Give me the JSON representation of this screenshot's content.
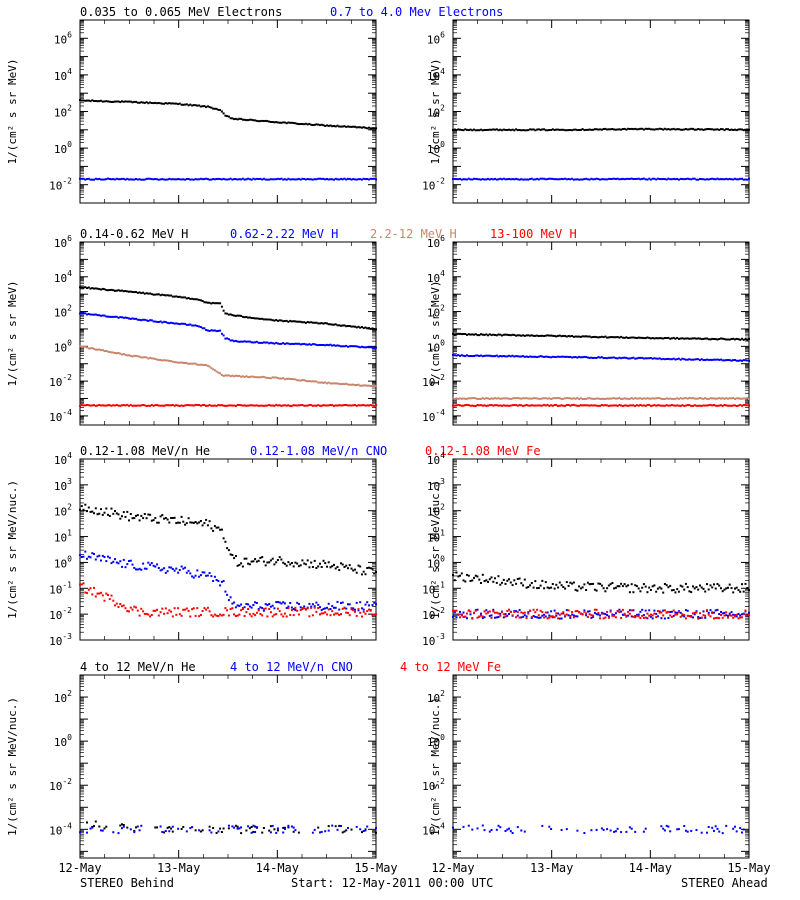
{
  "footer": {
    "left": "STEREO Behind",
    "center": "Start: 12-May-2011 00:00 UTC",
    "right": "STEREO Ahead"
  },
  "colors": {
    "black": "#000000",
    "blue": "#0000ff",
    "tan": "#c8866a",
    "red": "#ff0000"
  },
  "x_ticks": [
    "12-May",
    "13-May",
    "14-May",
    "15-May"
  ],
  "chart_data": [
    {
      "id": "electrons-behind",
      "type": "scatter",
      "scale": "log",
      "ylabel": "1/(cm² s sr MeV)",
      "ylim": [
        0.001,
        10000000
      ],
      "yticks": [
        {
          "v": 0.01,
          "e": "-2"
        },
        {
          "v": 1.0,
          "e": "0"
        },
        {
          "v": 100.0,
          "e": "2"
        },
        {
          "v": 10000.0,
          "e": "4"
        },
        {
          "v": 1000000.0,
          "e": "6"
        }
      ],
      "xlim": [
        0,
        3
      ],
      "series": [
        {
          "name": "0.035 to 0.065 MeV Electrons",
          "color": "black",
          "x": [
            0,
            0.5,
            1.0,
            1.3,
            1.42,
            1.47,
            1.55,
            2.0,
            2.5,
            3.0
          ],
          "y": [
            400,
            330,
            260,
            180,
            120,
            60,
            40,
            26,
            17,
            12
          ]
        },
        {
          "name": "0.7 to 4.0 Mev Electrons",
          "color": "blue",
          "x": [
            0,
            1,
            2,
            3
          ],
          "y": [
            0.02,
            0.02,
            0.02,
            0.02
          ]
        }
      ]
    },
    {
      "id": "electrons-ahead",
      "type": "scatter",
      "scale": "log",
      "ylabel": "1/(cm² s sr MeV)",
      "ylim": [
        0.001,
        10000000
      ],
      "yticks": [
        {
          "v": 0.01,
          "e": "-2"
        },
        {
          "v": 1.0,
          "e": "0"
        },
        {
          "v": 100.0,
          "e": "2"
        },
        {
          "v": 10000.0,
          "e": "4"
        },
        {
          "v": 1000000.0,
          "e": "6"
        }
      ],
      "xlim": [
        0,
        3
      ],
      "series": [
        {
          "name": "",
          "color": "black",
          "x": [
            0,
            1,
            2,
            3
          ],
          "y": [
            10,
            10,
            11,
            10
          ]
        },
        {
          "name": "",
          "color": "blue",
          "x": [
            0,
            1,
            2,
            3
          ],
          "y": [
            0.02,
            0.02,
            0.02,
            0.02
          ]
        }
      ]
    },
    {
      "id": "protons-behind",
      "type": "scatter",
      "scale": "log",
      "ylabel": "1/(cm² s sr MeV)",
      "ylim": [
        3e-05,
        1000000
      ],
      "yticks": [
        {
          "v": 0.0001,
          "e": "-4"
        },
        {
          "v": 0.01,
          "e": "-2"
        },
        {
          "v": 1.0,
          "e": "0"
        },
        {
          "v": 100.0,
          "e": "2"
        },
        {
          "v": 10000.0,
          "e": "4"
        },
        {
          "v": 1000000.0,
          "e": "6"
        }
      ],
      "xlim": [
        0,
        3
      ],
      "series": [
        {
          "name": "0.14-0.62 MeV H",
          "color": "black",
          "x": [
            0,
            0.5,
            1.0,
            1.2,
            1.3,
            1.42,
            1.47,
            1.55,
            2.0,
            2.5,
            3.0
          ],
          "y": [
            2500,
            1400,
            700,
            500,
            300,
            300,
            80,
            60,
            30,
            20,
            10
          ]
        },
        {
          "name": "0.62-2.22 MeV H",
          "color": "blue",
          "x": [
            0,
            0.5,
            1.0,
            1.2,
            1.3,
            1.42,
            1.47,
            1.55,
            2.0,
            2.5,
            3.0
          ],
          "y": [
            80,
            40,
            20,
            15,
            8,
            8,
            3,
            2,
            1.5,
            1.2,
            0.8
          ]
        },
        {
          "name": "2.2-12 MeV H",
          "color": "tan",
          "x": [
            0,
            0.5,
            1.0,
            1.3,
            1.45,
            1.55,
            2.0,
            2.5,
            3.0
          ],
          "y": [
            1.0,
            0.3,
            0.12,
            0.08,
            0.02,
            0.02,
            0.015,
            0.008,
            0.005
          ]
        },
        {
          "name": "13-100 MeV H",
          "color": "red",
          "x": [
            0,
            1,
            2,
            3
          ],
          "y": [
            0.0004,
            0.0004,
            0.0004,
            0.0004
          ]
        }
      ]
    },
    {
      "id": "protons-ahead",
      "type": "scatter",
      "scale": "log",
      "ylabel": "1/(cm² s sr MeV)",
      "ylim": [
        3e-05,
        1000000
      ],
      "yticks": [
        {
          "v": 0.0001,
          "e": "-4"
        },
        {
          "v": 0.01,
          "e": "-2"
        },
        {
          "v": 1.0,
          "e": "0"
        },
        {
          "v": 100.0,
          "e": "2"
        },
        {
          "v": 10000.0,
          "e": "4"
        },
        {
          "v": 1000000.0,
          "e": "6"
        }
      ],
      "xlim": [
        0,
        3
      ],
      "series": [
        {
          "name": "",
          "color": "black",
          "x": [
            0,
            1,
            2,
            3
          ],
          "y": [
            5,
            4,
            3,
            2.5
          ]
        },
        {
          "name": "",
          "color": "blue",
          "x": [
            0,
            1,
            2,
            3
          ],
          "y": [
            0.3,
            0.25,
            0.2,
            0.15
          ]
        },
        {
          "name": "",
          "color": "tan",
          "x": [
            0,
            1,
            2,
            3
          ],
          "y": [
            0.001,
            0.001,
            0.001,
            0.001
          ]
        },
        {
          "name": "",
          "color": "red",
          "x": [
            0,
            1,
            2,
            3
          ],
          "y": [
            0.0004,
            0.0004,
            0.0004,
            0.0004
          ]
        }
      ]
    },
    {
      "id": "heavy-behind",
      "type": "scatter",
      "scale": "log",
      "ylabel": "1/(cm² s sr MeV/nuc.)",
      "ylim": [
        0.001,
        10000
      ],
      "yticks": [
        {
          "v": 0.001,
          "e": "-3"
        },
        {
          "v": 0.01,
          "e": "-2"
        },
        {
          "v": 0.1,
          "e": "-1"
        },
        {
          "v": 1.0,
          "e": "0"
        },
        {
          "v": 10.0,
          "e": "1"
        },
        {
          "v": 100.0,
          "e": "2"
        },
        {
          "v": 1000.0,
          "e": "3"
        },
        {
          "v": 10000.0,
          "e": "4"
        }
      ],
      "xlim": [
        0,
        3
      ],
      "series": [
        {
          "name": "0.12-1.08 MeV/n He",
          "color": "black",
          "x": [
            0,
            0.5,
            1.0,
            1.3,
            1.45,
            1.52,
            1.6,
            2.0,
            2.5,
            3.0
          ],
          "y": [
            150,
            60,
            40,
            30,
            15,
            2,
            1.0,
            1.2,
            0.8,
            0.4
          ]
        },
        {
          "name": "0.12-1.08 MeV/n CNO",
          "color": "blue",
          "x": [
            0,
            0.5,
            1.0,
            1.3,
            1.45,
            1.55,
            2.0,
            2.5,
            3.0
          ],
          "y": [
            2.0,
            0.8,
            0.5,
            0.3,
            0.15,
            0.02,
            0.02,
            0.02,
            0.02
          ]
        },
        {
          "name": "0.12-1.08 MeV Fe",
          "color": "red",
          "x": [
            0,
            0.3,
            0.6,
            1.0,
            2.0,
            3.0
          ],
          "y": [
            0.12,
            0.04,
            0.012,
            0.012,
            0.012,
            0.012
          ]
        }
      ]
    },
    {
      "id": "heavy-ahead",
      "type": "scatter",
      "scale": "log",
      "ylabel": "1/(cm² s sr MeV/nuc.)",
      "ylim": [
        0.001,
        10000
      ],
      "yticks": [
        {
          "v": 0.001,
          "e": "-3"
        },
        {
          "v": 0.01,
          "e": "-2"
        },
        {
          "v": 0.1,
          "e": "-1"
        },
        {
          "v": 1.0,
          "e": "0"
        },
        {
          "v": 10.0,
          "e": "1"
        },
        {
          "v": 100.0,
          "e": "2"
        },
        {
          "v": 1000.0,
          "e": "3"
        },
        {
          "v": 10000.0,
          "e": "4"
        }
      ],
      "xlim": [
        0,
        3
      ],
      "series": [
        {
          "name": "",
          "color": "black",
          "x": [
            0,
            0.5,
            1.0,
            2.0,
            3.0
          ],
          "y": [
            0.3,
            0.2,
            0.12,
            0.1,
            0.1
          ]
        },
        {
          "name": "",
          "color": "blue",
          "x": [
            0,
            1,
            2,
            3
          ],
          "y": [
            0.01,
            0.01,
            0.01,
            0.01
          ]
        },
        {
          "name": "",
          "color": "red",
          "x": [
            0,
            1,
            2,
            3
          ],
          "y": [
            0.01,
            0.01,
            0.01,
            0.01
          ]
        }
      ]
    },
    {
      "id": "high-energy-behind",
      "type": "scatter",
      "scale": "log",
      "ylabel": "1/(cm² s sr MeV/nuc.)",
      "ylim": [
        5e-06,
        1000
      ],
      "yticks": [
        {
          "v": 0.0001,
          "e": "-4"
        },
        {
          "v": 0.01,
          "e": "-2"
        },
        {
          "v": 1.0,
          "e": "0"
        },
        {
          "v": 100.0,
          "e": "2"
        }
      ],
      "xlim": [
        0,
        3
      ],
      "series": [
        {
          "name": "4 to 12 MeV/n He",
          "color": "black",
          "x": [
            0,
            0.5,
            1.0,
            1.5,
            2.0,
            2.5,
            3.0
          ],
          "y": [
            0.0002,
            0.00012,
            0.0001,
            0.0001,
            0.0001,
            0.0001,
            0.0001
          ]
        },
        {
          "name": "4 to 12 MeV/n CNO",
          "color": "blue",
          "x": [
            0,
            1,
            2,
            3
          ],
          "y": [
            0.0001,
            0.0001,
            0.0001,
            0.0001
          ]
        },
        {
          "name": "4 to 12 MeV Fe",
          "color": "red",
          "x": [],
          "y": []
        }
      ]
    },
    {
      "id": "high-energy-ahead",
      "type": "scatter",
      "scale": "log",
      "ylabel": "1/(cm² s sr MeV/nuc.)",
      "ylim": [
        5e-06,
        1000
      ],
      "yticks": [
        {
          "v": 0.0001,
          "e": "-4"
        },
        {
          "v": 0.01,
          "e": "-2"
        },
        {
          "v": 1.0,
          "e": "0"
        },
        {
          "v": 100.0,
          "e": "2"
        }
      ],
      "xlim": [
        0,
        3
      ],
      "series": [
        {
          "name": "",
          "color": "blue",
          "x": [
            0,
            1,
            2,
            3
          ],
          "y": [
            0.0001,
            0.0001,
            0.0001,
            0.0001
          ]
        }
      ]
    }
  ]
}
